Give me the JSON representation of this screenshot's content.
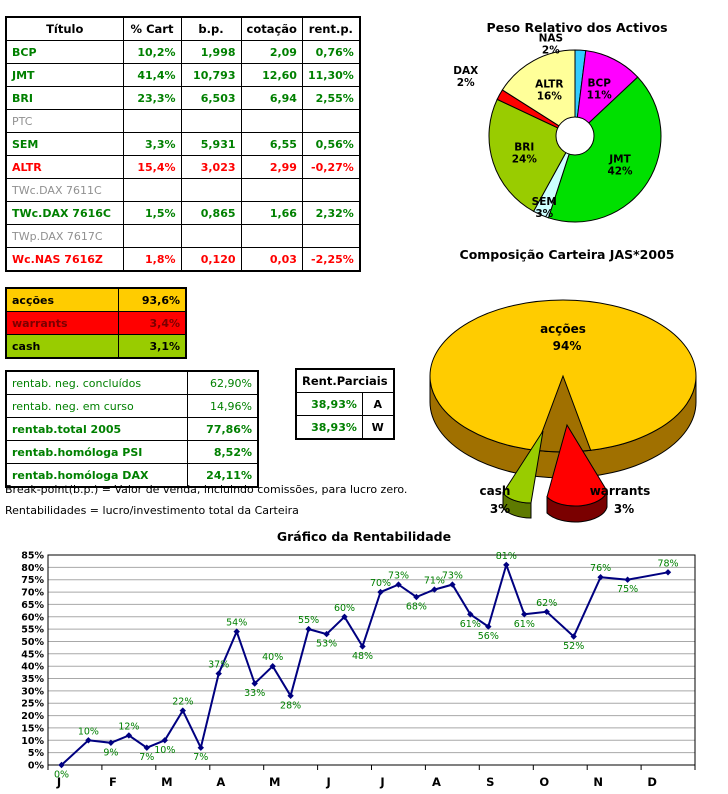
{
  "portfolio_table": {
    "headers": [
      "Título",
      "% Cart",
      "b.p.",
      "cotação",
      "rent.p."
    ],
    "rows": [
      {
        "name": "BCP",
        "cart": "10,2%",
        "bp": "1,998",
        "cot": "2,09",
        "rent": "0,76%",
        "color": "green"
      },
      {
        "name": "JMT",
        "cart": "41,4%",
        "bp": "10,793",
        "cot": "12,60",
        "rent": "11,30%",
        "color": "green"
      },
      {
        "name": "BRI",
        "cart": "23,3%",
        "bp": "6,503",
        "cot": "6,94",
        "rent": "2,55%",
        "color": "green"
      },
      {
        "name": "PTC",
        "cart": "",
        "bp": "",
        "cot": "",
        "rent": "",
        "color": "gray"
      },
      {
        "name": "SEM",
        "cart": "3,3%",
        "bp": "5,931",
        "cot": "6,55",
        "rent": "0,56%",
        "color": "green"
      },
      {
        "name": "ALTR",
        "cart": "15,4%",
        "bp": "3,023",
        "cot": "2,99",
        "rent": "-0,27%",
        "color": "red"
      },
      {
        "name": "TWc.DAX 7611C",
        "cart": "",
        "bp": "",
        "cot": "",
        "rent": "",
        "color": "gray"
      },
      {
        "name": "TWc.DAX 7616C",
        "cart": "1,5%",
        "bp": "0,865",
        "cot": "1,66",
        "rent": "2,32%",
        "color": "green"
      },
      {
        "name": "TWp.DAX 7617C",
        "cart": "",
        "bp": "",
        "cot": "",
        "rent": "",
        "color": "gray"
      },
      {
        "name": "Wc.NAS 7616Z",
        "cart": "1,8%",
        "bp": "0,120",
        "cot": "0,03",
        "rent": "-2,25%",
        "color": "red"
      }
    ]
  },
  "allocation_table": {
    "rows": [
      {
        "label": "acções",
        "value": "93,6%",
        "bg": "#FFCC00",
        "fg": "#000000"
      },
      {
        "label": "warrants",
        "value": "3,4%",
        "bg": "#FF0000",
        "fg": "#7B0000"
      },
      {
        "label": "cash",
        "value": "3,1%",
        "bg": "#99CC00",
        "fg": "#000000"
      }
    ]
  },
  "returns_table": {
    "rows": [
      {
        "label": "rentab. neg. concluídos",
        "value": "62,90%",
        "bold": false
      },
      {
        "label": "rentab. neg. em curso",
        "value": "14,96%",
        "bold": false
      },
      {
        "label": "rentab.total 2005",
        "value": "77,86%",
        "bold": true
      },
      {
        "label": "rentab.homóloga PSI",
        "value": "8,52%",
        "bold": true
      },
      {
        "label": "rentab.homóloga DAX",
        "value": "24,11%",
        "bold": true
      }
    ]
  },
  "partials_table": {
    "title": "Rent.Parciais",
    "rows": [
      {
        "value": "38,93%",
        "letter": "A"
      },
      {
        "value": "38,93%",
        "letter": "W"
      }
    ]
  },
  "notes": [
    "Break-point(b.p.) = Valor de venda, incluindo comissões, para lucro zero.",
    "Rentabilidades = lucro/investimento total da Carteira"
  ],
  "chart_data": [
    {
      "type": "pie",
      "title": "Peso Relativo dos Activos",
      "donut": true,
      "labels": [
        "NAS",
        "BCP",
        "JMT",
        "SEM",
        "BRI",
        "DAX",
        "ALTR"
      ],
      "values": [
        2,
        11,
        42,
        3,
        24,
        2,
        16
      ],
      "colors": [
        "#33CCFF",
        "#FF00FF",
        "#00E000",
        "#CCFFFF",
        "#99CC00",
        "#FF0000",
        "#FFFF99"
      ]
    },
    {
      "type": "pie",
      "style": "3d-exploded",
      "title": "Composição Carteira JAS*2005",
      "labels": [
        "acções",
        "warrants",
        "cash"
      ],
      "values": [
        94,
        3,
        3
      ],
      "colors": [
        "#FFCC00",
        "#FF0000",
        "#99CC00"
      ],
      "dark_colors": [
        "#A07000",
        "#7A0000",
        "#5E7A00"
      ]
    },
    {
      "type": "line",
      "title": "Gráfico da Rentabilidade",
      "x_labels": [
        "J",
        "F",
        "M",
        "A",
        "M",
        "J",
        "J",
        "A",
        "S",
        "O",
        "N",
        "D"
      ],
      "points_per_month": [
        2,
        3,
        3,
        3,
        3,
        3,
        3,
        3,
        3,
        2,
        2,
        1
      ],
      "values": [
        0,
        10,
        9,
        12,
        7,
        10,
        22,
        7,
        37,
        54,
        33,
        40,
        28,
        55,
        53,
        60,
        48,
        70,
        73,
        68,
        71,
        73,
        61,
        56,
        81,
        61,
        62,
        52,
        76,
        75,
        78
      ],
      "label_positions": [
        "b",
        "a",
        "b",
        "a",
        "b",
        "b",
        "a",
        "b",
        "a",
        "a",
        "b",
        "a",
        "b",
        "a",
        "b",
        "a",
        "b",
        "a",
        "a",
        "b",
        "a",
        "a",
        "b",
        "b",
        "a",
        "b",
        "a",
        "b",
        "a",
        "b",
        "a"
      ],
      "ylim": [
        0,
        85
      ],
      "ytick_step": 5,
      "grid": true,
      "line_color": "#000080",
      "label_color": "#008000"
    }
  ]
}
